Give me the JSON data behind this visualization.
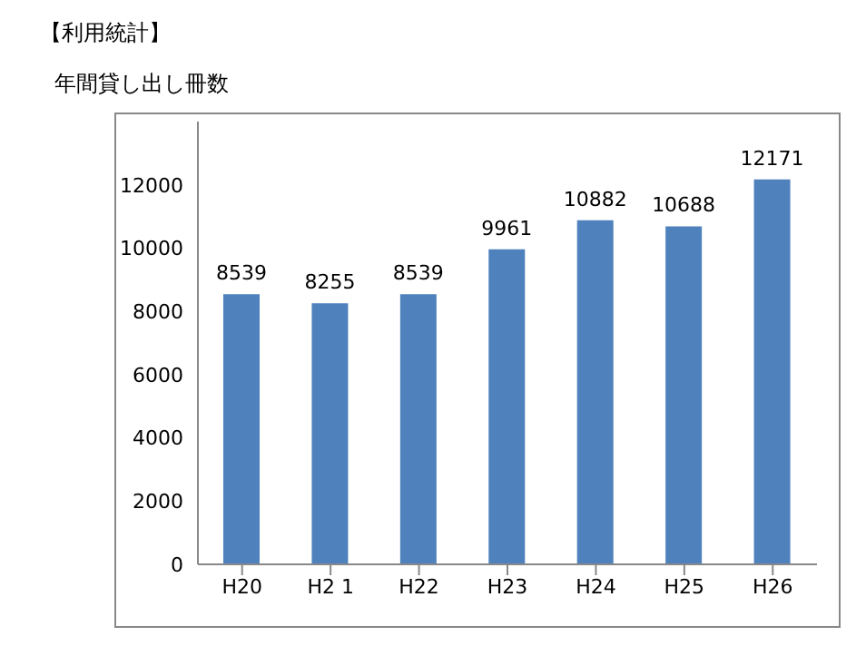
{
  "chart_data": {
    "type": "bar",
    "title": "【利用統計】",
    "subtitle": "年間貸し出し冊数",
    "categories": [
      "H20",
      "H2 1",
      "H22",
      "H23",
      "H24",
      "H25",
      "H26"
    ],
    "values": [
      8539,
      8255,
      8539,
      9961,
      10882,
      10688,
      12171
    ],
    "color": "#4f81bd",
    "ylim": [
      0,
      14000
    ],
    "yticks": [
      0,
      2000,
      4000,
      6000,
      8000,
      10000,
      12000
    ],
    "grid": false,
    "data_labels": true
  }
}
